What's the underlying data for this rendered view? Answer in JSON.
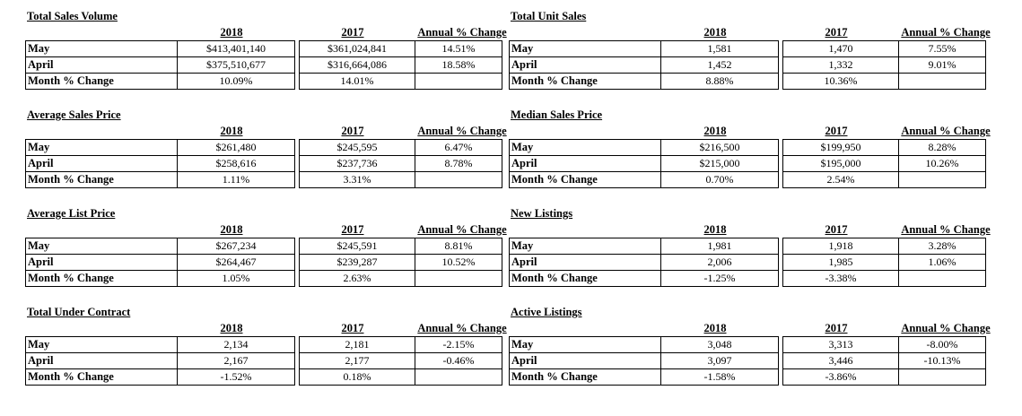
{
  "blocks": [
    {
      "title": "Total Sales Volume",
      "h2018": "2018",
      "h2017": "2017",
      "hchg": "Annual % Change",
      "rows": [
        {
          "label": "May",
          "v2018": "$413,401,140",
          "v2017": "$361,024,841",
          "chg": "14.51%"
        },
        {
          "label": "April",
          "v2018": "$375,510,677",
          "v2017": "$316,664,086",
          "chg": "18.58%"
        },
        {
          "label": "Month % Change",
          "v2018": "10.09%",
          "v2017": "14.01%",
          "chg": ""
        }
      ]
    },
    {
      "title": "Total Unit Sales",
      "h2018": "2018",
      "h2017": "2017",
      "hchg": "Annual % Change",
      "rows": [
        {
          "label": "May",
          "v2018": "1,581",
          "v2017": "1,470",
          "chg": "7.55%"
        },
        {
          "label": "April",
          "v2018": "1,452",
          "v2017": "1,332",
          "chg": "9.01%"
        },
        {
          "label": "Month % Change",
          "v2018": "8.88%",
          "v2017": "10.36%",
          "chg": ""
        }
      ]
    },
    {
      "title": "Average Sales Price",
      "h2018": "2018",
      "h2017": "2017",
      "hchg": "Annual % Change",
      "rows": [
        {
          "label": "May",
          "v2018": "$261,480",
          "v2017": "$245,595",
          "chg": "6.47%"
        },
        {
          "label": "April",
          "v2018": "$258,616",
          "v2017": "$237,736",
          "chg": "8.78%"
        },
        {
          "label": "Month % Change",
          "v2018": "1.11%",
          "v2017": "3.31%",
          "chg": ""
        }
      ]
    },
    {
      "title": "Median Sales Price",
      "h2018": "2018",
      "h2017": "2017",
      "hchg": "Annual % Change",
      "rows": [
        {
          "label": "May",
          "v2018": "$216,500",
          "v2017": "$199,950",
          "chg": "8.28%"
        },
        {
          "label": "April",
          "v2018": "$215,000",
          "v2017": "$195,000",
          "chg": "10.26%"
        },
        {
          "label": "Month % Change",
          "v2018": "0.70%",
          "v2017": "2.54%",
          "chg": ""
        }
      ]
    },
    {
      "title": "Average List Price",
      "h2018": "2018",
      "h2017": "2017",
      "hchg": "Annual % Change",
      "rows": [
        {
          "label": "May",
          "v2018": "$267,234",
          "v2017": "$245,591",
          "chg": "8.81%"
        },
        {
          "label": "April",
          "v2018": "$264,467",
          "v2017": "$239,287",
          "chg": "10.52%"
        },
        {
          "label": "Month % Change",
          "v2018": "1.05%",
          "v2017": "2.63%",
          "chg": ""
        }
      ]
    },
    {
      "title": "New Listings",
      "h2018": "2018",
      "h2017": "2017",
      "hchg": "Annual % Change",
      "rows": [
        {
          "label": "May",
          "v2018": "1,981",
          "v2017": "1,918",
          "chg": "3.28%"
        },
        {
          "label": "April",
          "v2018": "2,006",
          "v2017": "1,985",
          "chg": "1.06%"
        },
        {
          "label": "Month % Change",
          "v2018": "-1.25%",
          "v2017": "-3.38%",
          "chg": ""
        }
      ]
    },
    {
      "title": "Total Under Contract",
      "h2018": "2018",
      "h2017": "2017",
      "hchg": "Annual % Change",
      "rows": [
        {
          "label": "May",
          "v2018": "2,134",
          "v2017": "2,181",
          "chg": "-2.15%"
        },
        {
          "label": "April",
          "v2018": "2,167",
          "v2017": "2,177",
          "chg": "-0.46%"
        },
        {
          "label": "Month % Change",
          "v2018": "-1.52%",
          "v2017": "0.18%",
          "chg": ""
        }
      ]
    },
    {
      "title": "Active Listings",
      "h2018": "2018",
      "h2017": "2017",
      "hchg": "Annual % Change",
      "rows": [
        {
          "label": "May",
          "v2018": "3,048",
          "v2017": "3,313",
          "chg": "-8.00%"
        },
        {
          "label": "April",
          "v2018": "3,097",
          "v2017": "3,446",
          "chg": "-10.13%"
        },
        {
          "label": "Month % Change",
          "v2018": "-1.58%",
          "v2017": "-3.86%",
          "chg": ""
        }
      ]
    }
  ]
}
